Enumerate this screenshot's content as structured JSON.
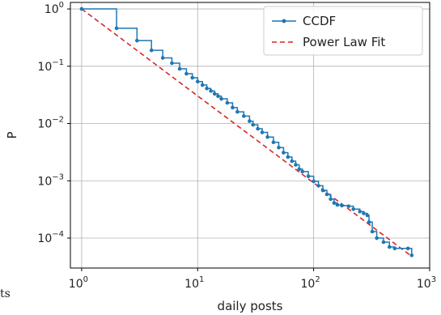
{
  "stray_text": "ts",
  "chart_data": {
    "type": "line",
    "xlabel": "daily posts",
    "ylabel": "P",
    "xscale": "log",
    "yscale": "log",
    "xlim": [
      0.8,
      1000
    ],
    "ylim": [
      3e-05,
      1.3
    ],
    "grid": true,
    "legend_position": "top-right",
    "x_ticks": [
      {
        "value": 1,
        "base": "10",
        "exp": "0"
      },
      {
        "value": 10,
        "base": "10",
        "exp": "1"
      },
      {
        "value": 100,
        "base": "10",
        "exp": "2"
      },
      {
        "value": 1000,
        "base": "10",
        "exp": "3"
      }
    ],
    "y_ticks": [
      {
        "value": 1,
        "base": "10",
        "exp": "0"
      },
      {
        "value": 0.1,
        "base": "10",
        "exp": "−1"
      },
      {
        "value": 0.01,
        "base": "10",
        "exp": "−2"
      },
      {
        "value": 0.001,
        "base": "10",
        "exp": "−3"
      },
      {
        "value": 0.0001,
        "base": "10",
        "exp": "−4"
      }
    ],
    "series": [
      {
        "name": "CCDF",
        "color": "#1f77b4",
        "style": "step-with-markers",
        "points": [
          [
            1,
            1.0
          ],
          [
            2,
            0.46
          ],
          [
            3,
            0.28
          ],
          [
            4,
            0.19
          ],
          [
            5,
            0.14
          ],
          [
            6,
            0.113
          ],
          [
            7,
            0.09
          ],
          [
            8,
            0.074
          ],
          [
            9,
            0.063
          ],
          [
            10,
            0.054
          ],
          [
            11,
            0.047
          ],
          [
            12,
            0.041
          ],
          [
            13,
            0.037
          ],
          [
            14,
            0.033
          ],
          [
            15,
            0.03
          ],
          [
            16,
            0.027
          ],
          [
            18,
            0.023
          ],
          [
            20,
            0.019
          ],
          [
            22,
            0.016
          ],
          [
            25,
            0.0135
          ],
          [
            28,
            0.011
          ],
          [
            30,
            0.0095
          ],
          [
            33,
            0.0081
          ],
          [
            36,
            0.007
          ],
          [
            40,
            0.0058
          ],
          [
            45,
            0.0047
          ],
          [
            50,
            0.0038
          ],
          [
            55,
            0.0031
          ],
          [
            60,
            0.0026
          ],
          [
            65,
            0.0022
          ],
          [
            70,
            0.0019
          ],
          [
            75,
            0.0016
          ],
          [
            80,
            0.00145
          ],
          [
            90,
            0.0012
          ],
          [
            100,
            0.00098
          ],
          [
            110,
            0.00082
          ],
          [
            120,
            0.00068
          ],
          [
            130,
            0.00058
          ],
          [
            140,
            0.00048
          ],
          [
            150,
            0.00041
          ],
          [
            160,
            0.00038
          ],
          [
            175,
            0.00037
          ],
          [
            200,
            0.00036
          ],
          [
            220,
            0.00032
          ],
          [
            250,
            0.00029
          ],
          [
            270,
            0.00027
          ],
          [
            290,
            0.00025
          ],
          [
            300,
            0.00019
          ],
          [
            320,
            0.00013
          ],
          [
            350,
            0.0001
          ],
          [
            400,
            8.5e-05
          ],
          [
            450,
            7e-05
          ],
          [
            500,
            6.6e-05
          ],
          [
            650,
            6.6e-05
          ],
          [
            700,
            5e-05
          ]
        ]
      },
      {
        "name": "Power Law Fit",
        "color": "#d62728",
        "style": "dashed",
        "points": [
          [
            1,
            1.0
          ],
          [
            700,
            4.8e-05
          ]
        ]
      }
    ]
  }
}
